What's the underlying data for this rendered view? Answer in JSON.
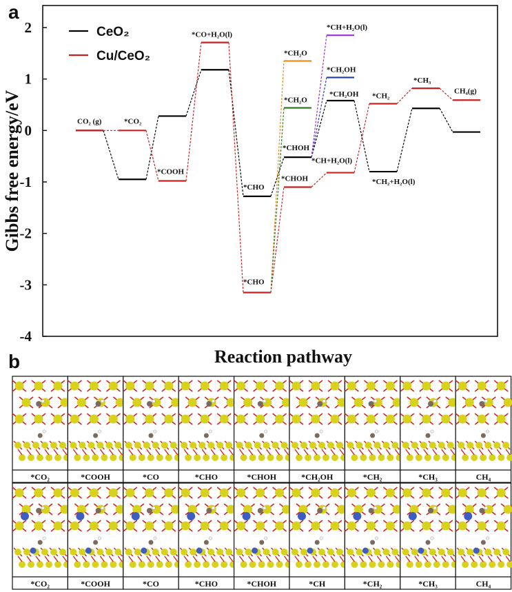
{
  "panel_a_letter": "a",
  "panel_b_letter": "b",
  "chart_data": {
    "type": "line",
    "ylabel": "Gibbs free energy/eV",
    "xlabel": "Reaction pathway",
    "ylim": [
      -4,
      2
    ],
    "y_ticks": [
      2,
      1,
      0,
      -1,
      -2,
      -3,
      -4
    ],
    "y_tick_labels": [
      "2",
      "1",
      "0",
      "-1",
      "-2",
      "-3",
      "-4"
    ],
    "legend_position": "top-left",
    "legend": [
      {
        "label": "CeO₂",
        "color": "#000000"
      },
      {
        "label": "Cu/CeO₂",
        "color": "#cc1f1f"
      }
    ],
    "steps": [
      "CO₂ (g)",
      "*CO₂",
      "*COOH",
      "*CO+H₂O(l)",
      "*CHO",
      "*CH₂O / *CHOH",
      "*CH₂OH / *CH+H₂O(l)",
      "*CH₂",
      "*CH₃",
      "CH₄(g)"
    ],
    "series": [
      {
        "name": "CeO₂",
        "color": "#000000",
        "levels": [
          {
            "step": 0,
            "value": 0.0,
            "label": ""
          },
          {
            "step": 1,
            "value": -0.95,
            "label": ""
          },
          {
            "step": 2,
            "value": 0.28,
            "label": ""
          },
          {
            "step": 3,
            "value": 1.18,
            "label": ""
          },
          {
            "step": 4,
            "value": -1.28,
            "label": "*CHO"
          },
          {
            "step": 5,
            "value": -0.52,
            "label": "*CHOH"
          },
          {
            "step": 6,
            "value": 0.58,
            "label": "*CH₂OH"
          },
          {
            "step": 7,
            "value": -0.8,
            "label": "*CH₂+H₂O(l)"
          },
          {
            "step": 8,
            "value": 0.43,
            "label": ""
          },
          {
            "step": 9,
            "value": -0.03,
            "label": ""
          }
        ]
      },
      {
        "name": "Cu/CeO₂",
        "color": "#cc1f1f",
        "levels": [
          {
            "step": 0,
            "value": 0.0,
            "label": "CO₂ (g)"
          },
          {
            "step": 1,
            "value": 0.0,
            "label": "*CO₂"
          },
          {
            "step": 2,
            "value": -0.98,
            "label": "*COOH"
          },
          {
            "step": 3,
            "value": 1.71,
            "label": "*CO+H₂O(l)"
          },
          {
            "step": 4,
            "value": -3.15,
            "label": "*CHO"
          },
          {
            "step": 5,
            "value": -1.1,
            "label": "*CHOH"
          },
          {
            "step": 6,
            "value": -0.82,
            "label": "*CH+H₂O(l)"
          },
          {
            "step": 7,
            "value": 0.52,
            "label": "*CH₂"
          },
          {
            "step": 8,
            "value": 0.82,
            "label": "*CH₃"
          },
          {
            "step": 9,
            "value": 0.59,
            "label": "CH₄(g)"
          }
        ]
      },
      {
        "name": "",
        "color": "#f08a1a",
        "levels": [
          {
            "step": 5,
            "value": 1.35,
            "label": "*CH₂O"
          }
        ]
      },
      {
        "name": "",
        "color": "#2e7d1e",
        "levels": [
          {
            "step": 5,
            "value": 0.44,
            "label": "*CH₂O"
          }
        ]
      },
      {
        "name": "",
        "color": "#1f3ea8",
        "levels": [
          {
            "step": 6,
            "value": 1.03,
            "label": "*CH₂OH"
          }
        ]
      },
      {
        "name": "",
        "color": "#9b2fd0",
        "levels": [
          {
            "step": 6,
            "value": 1.85,
            "label": "*CH+H₂O(l)"
          }
        ]
      }
    ]
  },
  "panel_b": {
    "rows": [
      {
        "system": "CeO₂",
        "labels": [
          "*CO₂",
          "*COOH",
          "*CO",
          "*CHO",
          "*CHOH",
          "*CH₂OH",
          "*CH₂",
          "*CH₃",
          "CH₄"
        ]
      },
      {
        "system": "Cu/CeO₂",
        "labels": [
          "*CO₂",
          "*COOH",
          "*CO",
          "*CHO",
          "*CHOH",
          "*CH",
          "*CH₂",
          "*CH₃",
          "CH₄"
        ]
      }
    ],
    "colors": {
      "ce": "#d6d21e",
      "o": "#d42020",
      "c": "#7a6a60",
      "h": "#f2f2f2",
      "cu": "#3f5cc0",
      "frame": "#111111"
    }
  }
}
